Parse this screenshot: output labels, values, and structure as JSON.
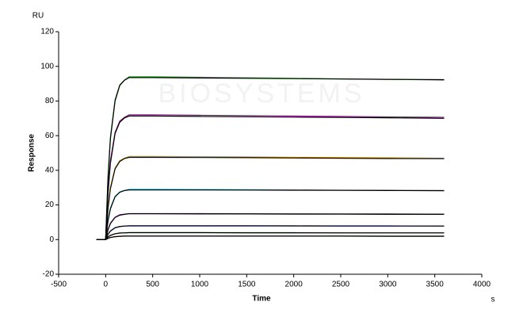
{
  "chart_data": {
    "type": "line",
    "y_unit": "RU",
    "y_label": "Response",
    "x_label": "Time",
    "x_unit": "s",
    "watermark": "BIOSYSTEMS",
    "x": [
      -100,
      0,
      25,
      50,
      100,
      150,
      200,
      250,
      500,
      1000,
      1500,
      2000,
      2500,
      3000,
      3600
    ],
    "xlim": [
      -500,
      4000
    ],
    "xticks": [
      -500,
      0,
      500,
      1000,
      1500,
      2000,
      2500,
      3000,
      3500,
      4000
    ],
    "ylim": [
      -20,
      120
    ],
    "yticks": [
      -20,
      0,
      20,
      40,
      60,
      80,
      100,
      120
    ],
    "series": [
      {
        "color": "#2e9e2e",
        "values": [
          0,
          0,
          36.7,
          59.2,
          80.8,
          89.3,
          92.1,
          94,
          94,
          93.7,
          93.4,
          93.1,
          92.8,
          92.5,
          92.1
        ]
      },
      {
        "color": "#8b1a8b",
        "values": [
          0,
          0,
          28.1,
          45.4,
          61.9,
          68.4,
          70.6,
          72,
          72,
          71.8,
          71.6,
          71.3,
          71.1,
          70.8,
          70.6
        ]
      },
      {
        "color": "#d4a017",
        "values": [
          0,
          0,
          18.7,
          30.2,
          41.3,
          45.6,
          47,
          48,
          48,
          47.9,
          47.7,
          47.5,
          47.4,
          47.2,
          47
        ]
      },
      {
        "color": "#1fb5c9",
        "values": [
          0,
          0,
          11.3,
          18.3,
          24.9,
          27.6,
          28.4,
          29,
          29,
          28.9,
          28.8,
          28.7,
          28.6,
          28.5,
          28.4
        ]
      },
      {
        "color": "#8020a0",
        "values": [
          0,
          0,
          5.9,
          9.5,
          12.9,
          14.3,
          14.7,
          15,
          15,
          15,
          14.9,
          14.9,
          14.8,
          14.8,
          14.7
        ]
      },
      {
        "color": "#1f3fbf",
        "values": [
          0,
          0,
          3.1,
          5,
          6.9,
          7.6,
          7.8,
          8,
          8,
          8,
          8,
          7.9,
          7.9,
          7.9,
          7.8
        ]
      },
      {
        "color": "#1a6b1a",
        "values": [
          0,
          0,
          1.6,
          2.5,
          3.4,
          3.8,
          3.9,
          4,
          4,
          4,
          4,
          4,
          3.9,
          3.9,
          3.9
        ]
      },
      {
        "color": "#c81e1e",
        "values": [
          0,
          0,
          0.8,
          1.3,
          1.7,
          1.9,
          2,
          2,
          2,
          2,
          2,
          2,
          2,
          2,
          2
        ]
      },
      {
        "color": "#000000",
        "values": [
          0,
          0,
          35,
          58,
          80,
          89,
          92,
          93.5,
          93.5,
          93.3,
          93.1,
          92.9,
          92.7,
          92.5,
          92.3
        ]
      },
      {
        "color": "#000000",
        "values": [
          0,
          0,
          26.6,
          43.9,
          61.2,
          67.7,
          70.2,
          71.3,
          71.3,
          71.1,
          70.9,
          70.7,
          70.5,
          70.3,
          70
        ]
      },
      {
        "color": "#000000",
        "values": [
          0,
          0,
          17.8,
          29.3,
          40.8,
          45.1,
          46.8,
          47.5,
          47.5,
          47.4,
          47.3,
          47.1,
          47,
          46.8,
          46.7
        ]
      },
      {
        "color": "#000000",
        "values": [
          0,
          0,
          10.7,
          17.7,
          24.7,
          27.3,
          28.3,
          28.7,
          28.7,
          28.7,
          28.6,
          28.5,
          28.4,
          28.3,
          28.2
        ]
      },
      {
        "color": "#000000",
        "values": [
          0,
          0,
          5.6,
          9.2,
          12.8,
          14.1,
          14.6,
          14.9,
          14.9,
          14.8,
          14.8,
          14.7,
          14.7,
          14.6,
          14.6
        ]
      },
      {
        "color": "#000000",
        "values": [
          0,
          0,
          3,
          4.9,
          6.8,
          7.5,
          7.8,
          7.9,
          7.9,
          7.9,
          7.9,
          7.9,
          7.8,
          7.8,
          7.8
        ]
      },
      {
        "color": "#000000",
        "values": [
          0,
          0,
          1.5,
          2.4,
          3.4,
          3.8,
          3.9,
          4,
          4,
          4,
          3.9,
          3.9,
          3.9,
          3.9,
          3.9
        ]
      },
      {
        "color": "#000000",
        "values": [
          0,
          0,
          0.7,
          1.2,
          1.7,
          1.9,
          2,
          2,
          2,
          2,
          2,
          2,
          2,
          1.9,
          1.9
        ]
      }
    ]
  }
}
